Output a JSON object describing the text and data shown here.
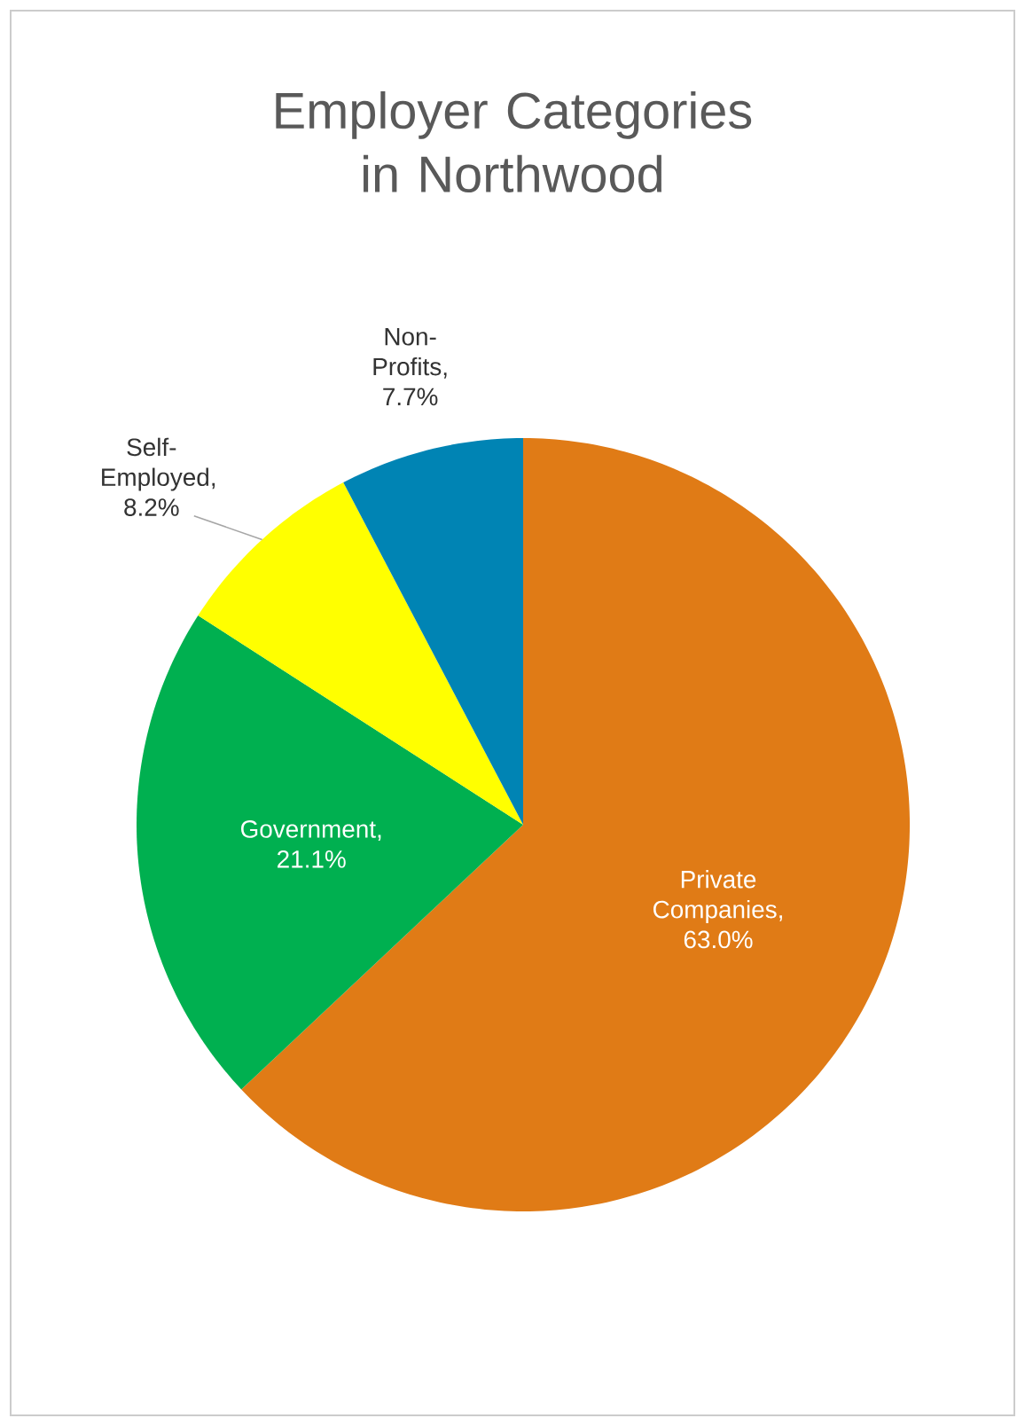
{
  "chart_data": {
    "type": "pie",
    "title": "Employer Categories in Northwood",
    "categories": [
      "Private Companies",
      "Government",
      "Self-Employed",
      "Non-Profits"
    ],
    "values": [
      63.0,
      21.1,
      8.2,
      7.7
    ],
    "colors": [
      "#e07b16",
      "#00b050",
      "#ffff00",
      "#0084b4"
    ],
    "value_labels": [
      ", 63.0%",
      ", 21.1%",
      ", 8.2%",
      ", 7.7%"
    ]
  }
}
